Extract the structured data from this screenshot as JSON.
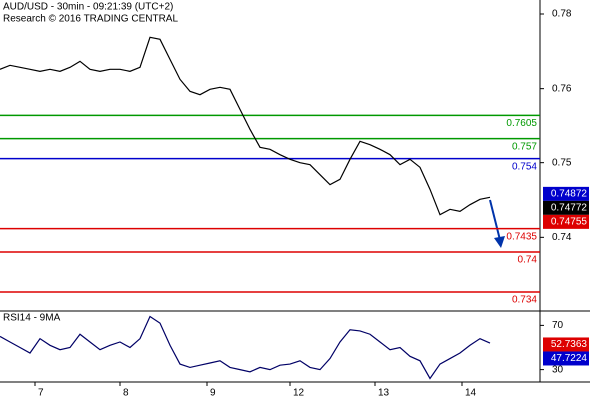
{
  "header": {
    "title": "AUD/USD - 30min - 09:21:39 (UTC+2)",
    "subtitle": "Research © 2016 TRADING CENTRAL"
  },
  "chart_data": [
    {
      "type": "line",
      "x": [
        0,
        1,
        2,
        3,
        4,
        5,
        6,
        7,
        8,
        9,
        10,
        11,
        12,
        13,
        14,
        15,
        16,
        17,
        18,
        19,
        20,
        21,
        22,
        23,
        24,
        25,
        26,
        27,
        28,
        29,
        30,
        31,
        32,
        33,
        34,
        35,
        36,
        37,
        38,
        39,
        40,
        41,
        42,
        43,
        44,
        45,
        46,
        47,
        48,
        49
      ],
      "xlim": [
        0,
        54
      ],
      "ylim": [
        0.7313,
        0.7778
      ],
      "yticks": [
        {
          "value": 0.7757,
          "label": "0.78"
        },
        {
          "value": 0.7645,
          "label": "0.76"
        },
        {
          "value": 0.7534,
          "label": "0.75"
        },
        {
          "value": 0.7422,
          "label": "0.74"
        }
      ],
      "series": [
        {
          "name": "AUD/USD",
          "color": "#000000",
          "values": [
            0.7674,
            0.768,
            0.7677,
            0.7674,
            0.7671,
            0.7674,
            0.7671,
            0.7677,
            0.7686,
            0.7674,
            0.7671,
            0.7674,
            0.7674,
            0.7671,
            0.7677,
            0.7722,
            0.7719,
            0.7689,
            0.7659,
            0.7641,
            0.7636,
            0.7644,
            0.7647,
            0.7644,
            0.7614,
            0.7584,
            0.7557,
            0.7554,
            0.7546,
            0.7539,
            0.7534,
            0.7531,
            0.7516,
            0.7501,
            0.7509,
            0.7539,
            0.7566,
            0.7561,
            0.7554,
            0.7546,
            0.7531,
            0.7539,
            0.7527,
            0.7494,
            0.7456,
            0.7464,
            0.7461,
            0.7471,
            0.7479,
            0.7482
          ]
        }
      ],
      "levels": [
        {
          "value": 0.7605,
          "color": "#009900"
        },
        {
          "value": 0.757,
          "color": "#009900"
        },
        {
          "value": 0.754,
          "color": "#0000cc"
        },
        {
          "value": 0.7435,
          "color": "#dd0000"
        },
        {
          "value": 0.74,
          "color": "#dd0000"
        },
        {
          "value": 0.734,
          "color": "#dd0000"
        }
      ],
      "price_boxes": [
        {
          "value": 0.74872,
          "color": "#0000cc"
        },
        {
          "value": 0.74772,
          "color": "#000000"
        },
        {
          "value": 0.74755,
          "color": "#dd0000"
        }
      ]
    },
    {
      "type": "line",
      "title": "RSI14 - 9MA",
      "x": [
        0,
        1,
        2,
        3,
        4,
        5,
        6,
        7,
        8,
        9,
        10,
        11,
        12,
        13,
        14,
        15,
        16,
        17,
        18,
        19,
        20,
        21,
        22,
        23,
        24,
        25,
        26,
        27,
        28,
        29,
        30,
        31,
        32,
        33,
        34,
        35,
        36,
        37,
        38,
        39,
        40,
        41,
        42,
        43,
        44,
        45,
        46,
        47,
        48,
        49
      ],
      "xlim": [
        0,
        54
      ],
      "xticks": [
        {
          "value": 3.5,
          "label": "7"
        },
        {
          "value": 12,
          "label": "8"
        },
        {
          "value": 20.7,
          "label": "9"
        },
        {
          "value": 29,
          "label": "12"
        },
        {
          "value": 37.5,
          "label": "13"
        },
        {
          "value": 46.2,
          "label": "14"
        }
      ],
      "ylim": [
        18.8,
        82.1
      ],
      "yticks": [
        70,
        30
      ],
      "series": [
        {
          "name": "RSI14",
          "color": "#000066",
          "values": [
            60,
            55,
            50,
            45,
            58,
            52,
            48,
            50,
            62,
            55,
            48,
            52,
            55,
            50,
            58,
            78,
            72,
            52,
            35,
            32,
            34,
            36,
            38,
            32,
            30,
            28,
            32,
            30,
            34,
            35,
            38,
            32,
            30,
            40,
            55,
            66,
            65,
            62,
            55,
            48,
            50,
            42,
            38,
            22,
            35,
            40,
            45,
            52,
            58,
            54
          ]
        }
      ],
      "price_boxes": [
        {
          "value": 52.7363,
          "color": "#dd0000"
        },
        {
          "value": 47.7224,
          "color": "#0000cc"
        }
      ]
    }
  ]
}
